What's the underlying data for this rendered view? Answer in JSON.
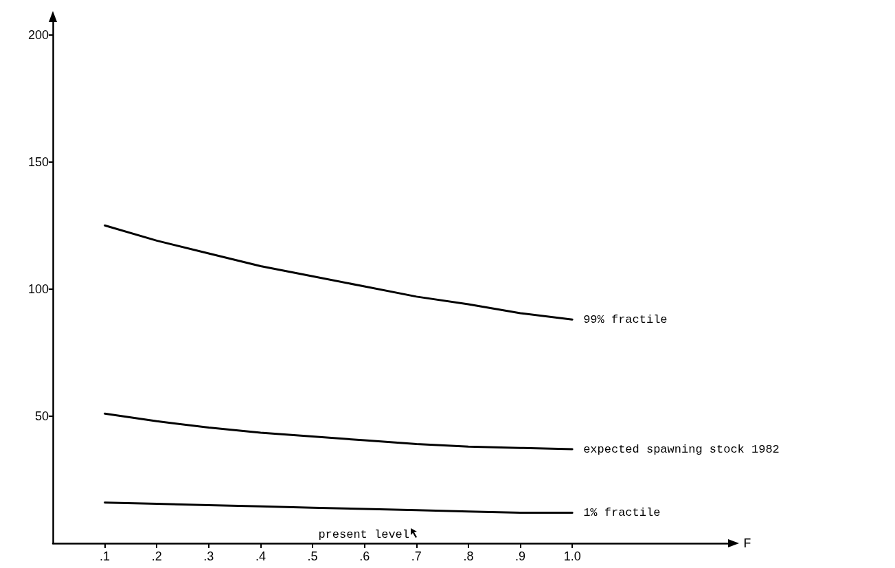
{
  "chart_data": {
    "type": "line",
    "xlabel": "F",
    "x": [
      0.1,
      0.2,
      0.3,
      0.4,
      0.5,
      0.6,
      0.7,
      0.8,
      0.9,
      1.0
    ],
    "series": [
      {
        "name": "99% fractile",
        "color": "#000000",
        "values": [
          125,
          119,
          114,
          109,
          105,
          101,
          97,
          94,
          90.5,
          88
        ]
      },
      {
        "name": "expected spawning stock 1982",
        "color": "#000000",
        "values": [
          51,
          48,
          45.5,
          43.5,
          42,
          40.5,
          39,
          38,
          37.5,
          37
        ]
      },
      {
        "name": "1% fractile",
        "color": "#000000",
        "values": [
          16,
          15.5,
          15,
          14.5,
          14,
          13.5,
          13,
          12.5,
          12,
          12
        ]
      }
    ],
    "xlim": [
      0,
      1.3
    ],
    "xticks": [
      {
        "value": 0.1,
        "label": ".1"
      },
      {
        "value": 0.2,
        "label": ".2"
      },
      {
        "value": 0.3,
        "label": ".3"
      },
      {
        "value": 0.4,
        "label": ".4"
      },
      {
        "value": 0.5,
        "label": ".5"
      },
      {
        "value": 0.6,
        "label": ".6"
      },
      {
        "value": 0.7,
        "label": ".7"
      },
      {
        "value": 0.8,
        "label": ".8"
      },
      {
        "value": 0.9,
        "label": ".9"
      },
      {
        "value": 1.0,
        "label": "1.0"
      }
    ],
    "ylim": [
      0,
      205
    ],
    "yticks": [
      50,
      100,
      150,
      200
    ],
    "annotations": [
      "present level"
    ],
    "grid": false,
    "legend": false,
    "marker": "none",
    "line_style": "solid"
  }
}
